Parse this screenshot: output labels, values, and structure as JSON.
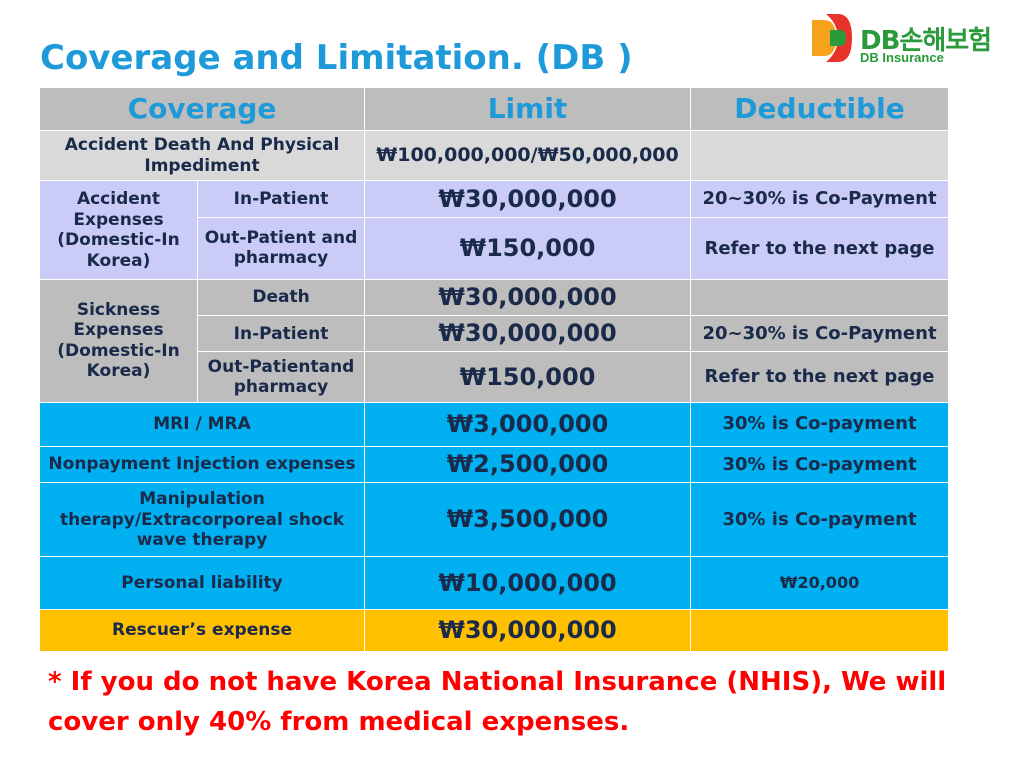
{
  "title": "Coverage and Limitation. (DB )",
  "logo": {
    "brand": "DB손해보험",
    "sub": "DB Insurance",
    "colors": [
      "#e8332a",
      "#f7a21b",
      "#2a9a3a",
      "#1f9ad9"
    ]
  },
  "table": {
    "headers": {
      "coverage": "Coverage",
      "limit": "Limit",
      "deductible": "Deductible"
    },
    "accident_death": {
      "label": "Accident Death And Physical Impediment",
      "limit": "₩100,000,000/₩50,000,000",
      "deductible": ""
    },
    "accident_expenses": {
      "label": "Accident Expenses (Domestic-In Korea)",
      "rows": [
        {
          "sub": "In-Patient",
          "limit": "₩30,000,000",
          "deductible": "20~30% is Co-Payment"
        },
        {
          "sub": "Out-Patient and pharmacy",
          "limit": "₩150,000",
          "deductible": "Refer to the next page"
        }
      ]
    },
    "sickness_expenses": {
      "label": "Sickness Expenses (Domestic-In Korea)",
      "rows": [
        {
          "sub": "Death",
          "limit": "₩30,000,000",
          "deductible": ""
        },
        {
          "sub": "In-Patient",
          "limit": "₩30,000,000",
          "deductible": "20~30% is Co-Payment"
        },
        {
          "sub": "Out-Patientand pharmacy",
          "limit": "₩150,000",
          "deductible": "Refer to the next page"
        }
      ]
    },
    "others": [
      {
        "label": "MRI / MRA",
        "limit": "₩3,000,000",
        "deductible": "30% is Co-payment"
      },
      {
        "label": "Nonpayment Injection expenses",
        "limit": "₩2,500,000",
        "deductible": "30% is Co-payment"
      },
      {
        "label": "Manipulation therapy/Extracorporeal shock wave therapy",
        "limit": "₩3,500,000",
        "deductible": "30% is Co-payment"
      },
      {
        "label": "Personal liability",
        "limit": "₩10,000,000",
        "deductible": "₩20,000"
      },
      {
        "label": "Rescuer’s expense",
        "limit": "₩30,000,000",
        "deductible": ""
      }
    ]
  },
  "note": "* If you do not have Korea National Insurance (NHIS), We will cover only 40% from medical expenses."
}
